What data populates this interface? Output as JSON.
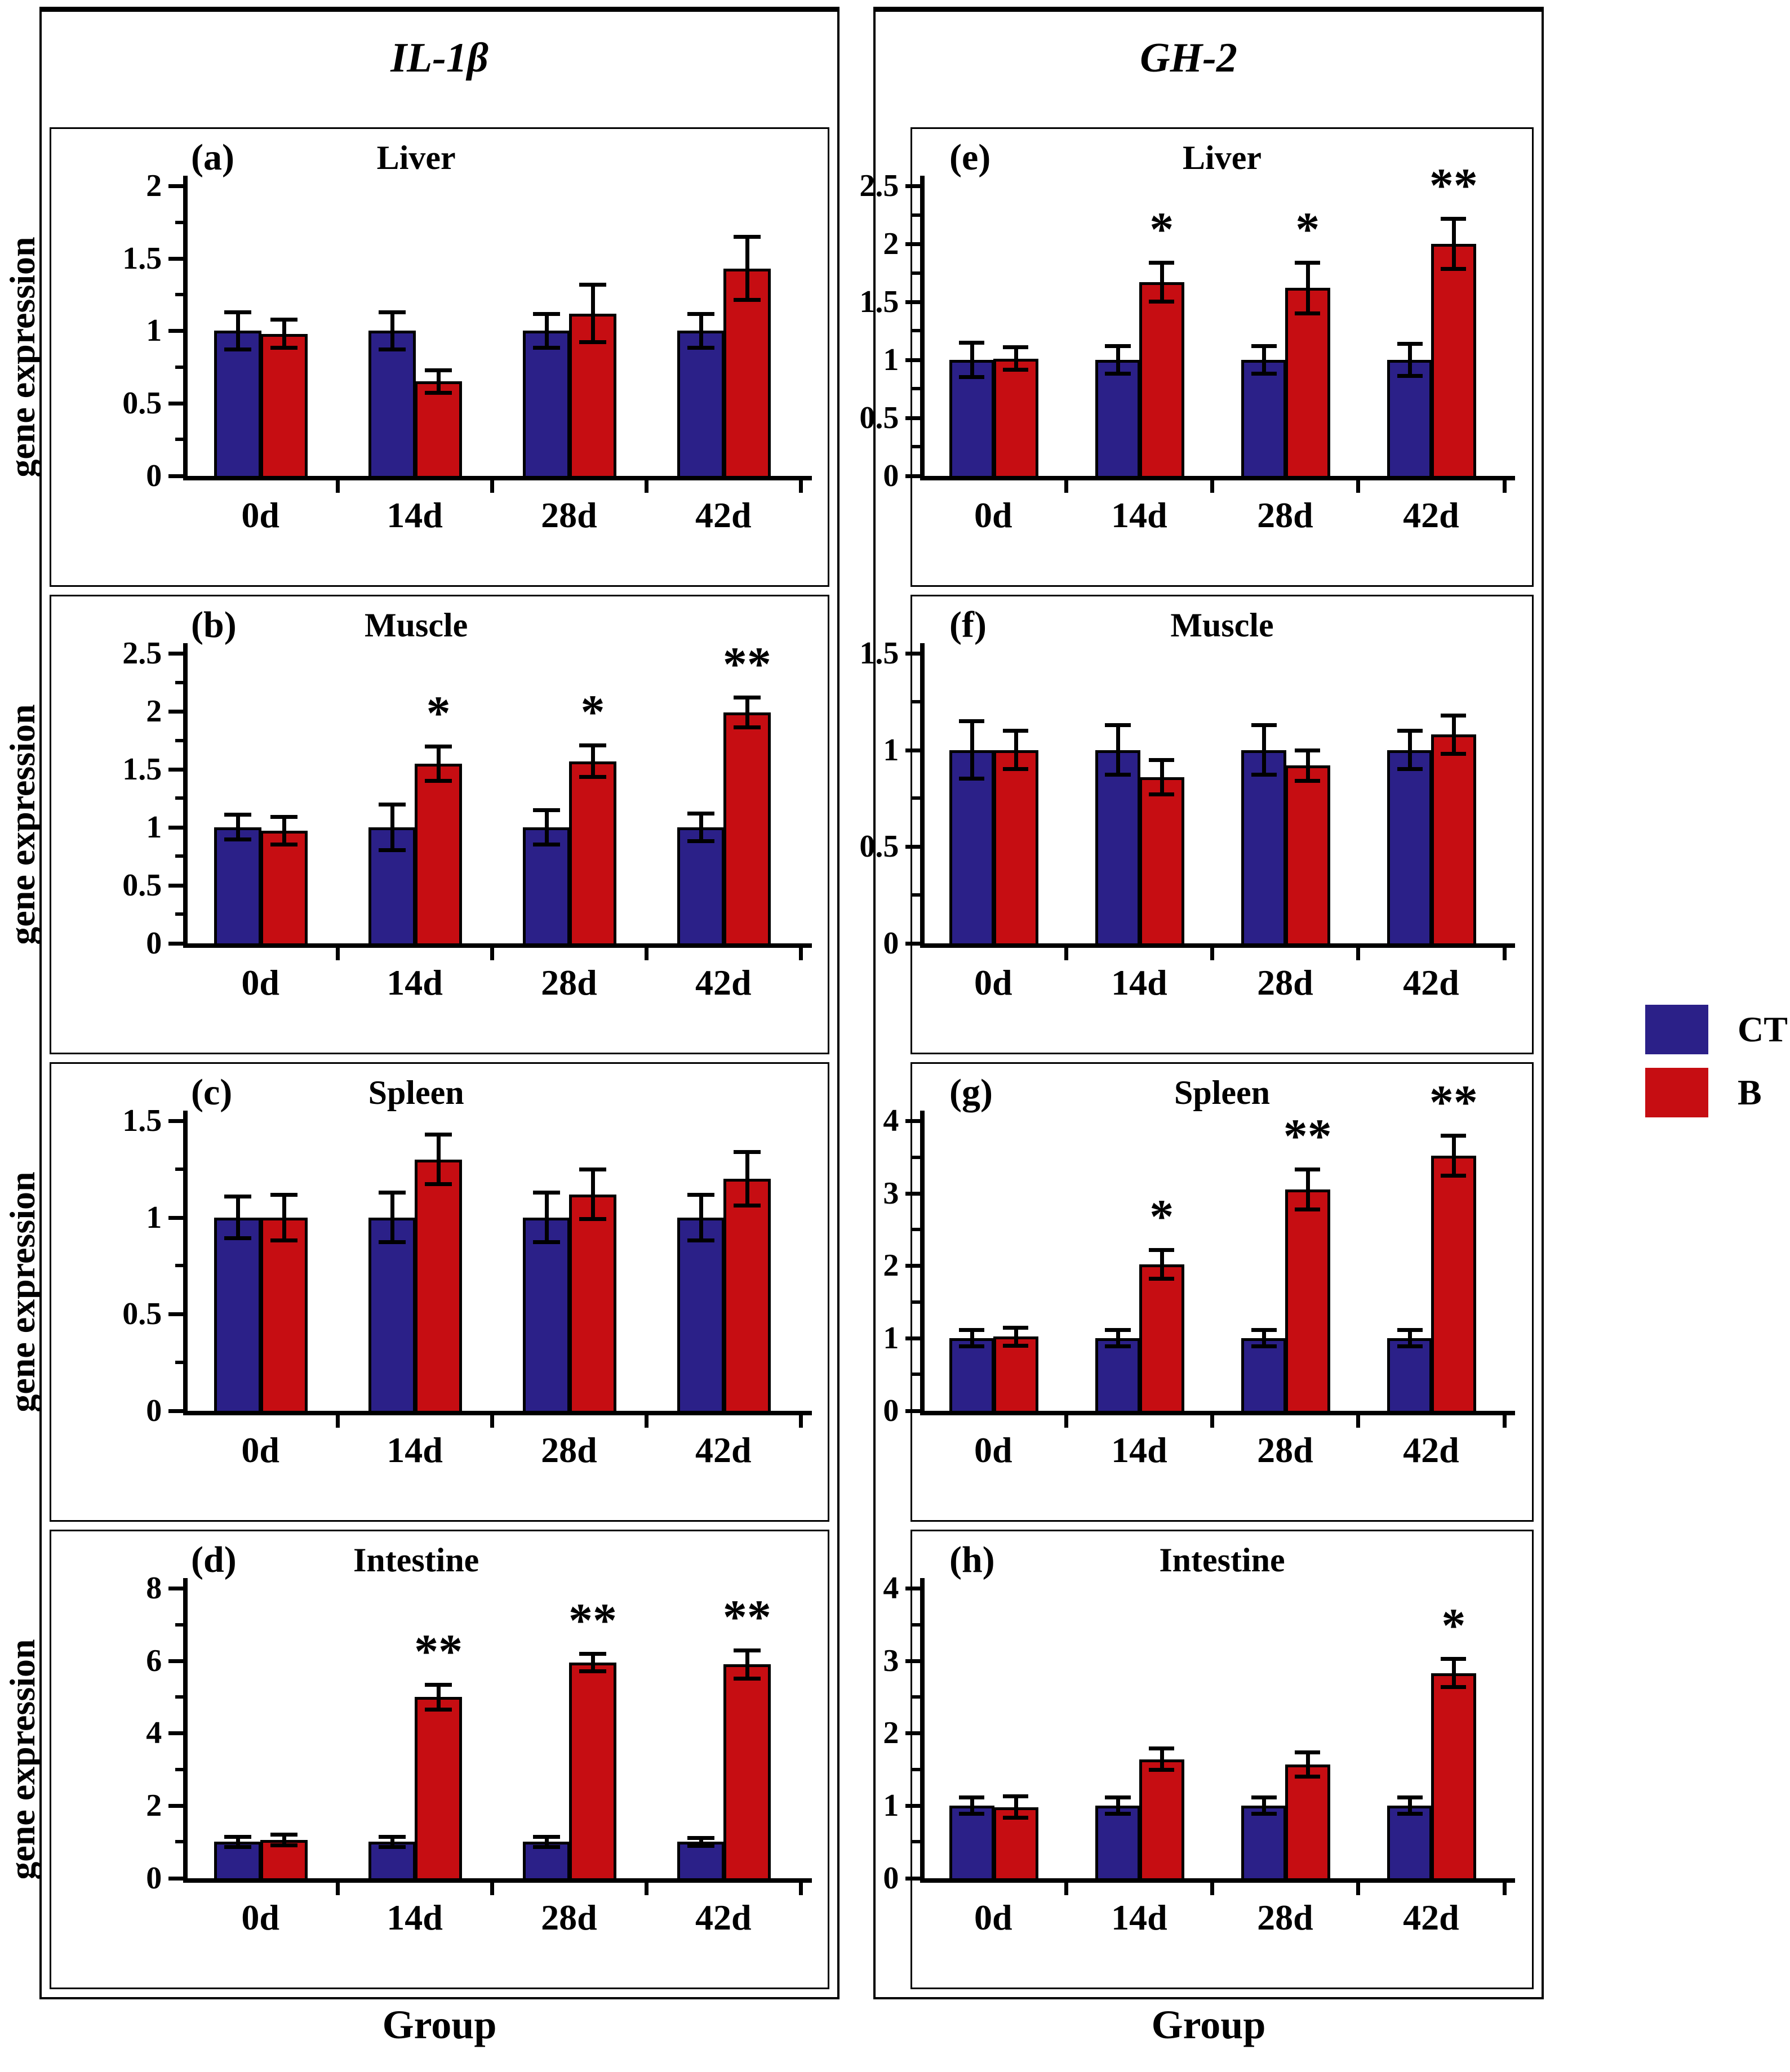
{
  "figure": {
    "columns": [
      {
        "title": "IL-1β"
      },
      {
        "title": "GH-2"
      }
    ],
    "ylabel": "gene expression",
    "xlabel": "Group",
    "legend": {
      "items": [
        {
          "label": "CT",
          "color": "#2B2088"
        },
        {
          "label": "B",
          "color": "#C60D12"
        }
      ]
    }
  },
  "chart_data": [
    {
      "id": "a",
      "title": "Liver",
      "type": "bar",
      "gene": "IL-1β",
      "categories": [
        "0d",
        "14d",
        "28d",
        "42d"
      ],
      "ylim": [
        0,
        2
      ],
      "yticks": [
        0,
        0.5,
        1,
        1.5,
        2
      ],
      "series": [
        {
          "name": "CT",
          "color": "#2B2088",
          "values": [
            1.0,
            1.0,
            1.0,
            1.0
          ],
          "errors": [
            0.13,
            0.13,
            0.12,
            0.12
          ]
        },
        {
          "name": "B",
          "color": "#C60D12",
          "values": [
            0.98,
            0.65,
            1.12,
            1.43
          ],
          "errors": [
            0.1,
            0.08,
            0.2,
            0.22
          ]
        }
      ],
      "significance": [
        "",
        "",
        "",
        ""
      ]
    },
    {
      "id": "b",
      "title": "Muscle",
      "type": "bar",
      "gene": "IL-1β",
      "categories": [
        "0d",
        "14d",
        "28d",
        "42d"
      ],
      "ylim": [
        0,
        2.5
      ],
      "yticks": [
        0,
        0.5,
        1,
        1.5,
        2,
        2.5
      ],
      "series": [
        {
          "name": "CT",
          "color": "#2B2088",
          "values": [
            1.0,
            1.0,
            1.0,
            1.0
          ],
          "errors": [
            0.11,
            0.2,
            0.15,
            0.12
          ]
        },
        {
          "name": "B",
          "color": "#C60D12",
          "values": [
            0.97,
            1.55,
            1.57,
            1.99
          ],
          "errors": [
            0.12,
            0.15,
            0.14,
            0.13
          ]
        }
      ],
      "significance": [
        "",
        "*",
        "*",
        "**"
      ]
    },
    {
      "id": "c",
      "title": "Spleen",
      "type": "bar",
      "gene": "IL-1β",
      "categories": [
        "0d",
        "14d",
        "28d",
        "42d"
      ],
      "ylim": [
        0,
        1.5
      ],
      "yticks": [
        0,
        0.5,
        1,
        1.5
      ],
      "series": [
        {
          "name": "CT",
          "color": "#2B2088",
          "values": [
            1.0,
            1.0,
            1.0,
            1.0
          ],
          "errors": [
            0.11,
            0.13,
            0.13,
            0.12
          ]
        },
        {
          "name": "B",
          "color": "#C60D12",
          "values": [
            1.0,
            1.3,
            1.12,
            1.2
          ],
          "errors": [
            0.12,
            0.13,
            0.13,
            0.14
          ]
        }
      ],
      "significance": [
        "",
        "",
        "",
        ""
      ]
    },
    {
      "id": "d",
      "title": "Intestine",
      "type": "bar",
      "gene": "IL-1β",
      "categories": [
        "0d",
        "14d",
        "28d",
        "42d"
      ],
      "ylim": [
        0,
        8
      ],
      "yticks": [
        0,
        2,
        4,
        6,
        8
      ],
      "series": [
        {
          "name": "CT",
          "color": "#2B2088",
          "values": [
            1.0,
            1.0,
            1.0,
            1.0
          ],
          "errors": [
            0.15,
            0.15,
            0.15,
            0.12
          ]
        },
        {
          "name": "B",
          "color": "#C60D12",
          "values": [
            1.05,
            5.0,
            5.95,
            5.9
          ],
          "errors": [
            0.15,
            0.35,
            0.25,
            0.4
          ]
        }
      ],
      "significance": [
        "",
        "**",
        "**",
        "**"
      ]
    },
    {
      "id": "e",
      "title": "Liver",
      "type": "bar",
      "gene": "GH-2",
      "categories": [
        "0d",
        "14d",
        "28d",
        "42d"
      ],
      "ylim": [
        0,
        2.5
      ],
      "yticks": [
        0,
        0.5,
        1,
        1.5,
        2,
        2.5
      ],
      "series": [
        {
          "name": "CT",
          "color": "#2B2088",
          "values": [
            1.0,
            1.0,
            1.0,
            1.0
          ],
          "errors": [
            0.15,
            0.12,
            0.12,
            0.14
          ]
        },
        {
          "name": "B",
          "color": "#C60D12",
          "values": [
            1.01,
            1.67,
            1.62,
            2.0
          ],
          "errors": [
            0.1,
            0.17,
            0.22,
            0.22
          ]
        }
      ],
      "significance": [
        "",
        "*",
        "*",
        "**"
      ]
    },
    {
      "id": "f",
      "title": "Muscle",
      "type": "bar",
      "gene": "GH-2",
      "categories": [
        "0d",
        "14d",
        "28d",
        "42d"
      ],
      "ylim": [
        0,
        1.5
      ],
      "yticks": [
        0,
        0.5,
        1,
        1.5
      ],
      "series": [
        {
          "name": "CT",
          "color": "#2B2088",
          "values": [
            1.0,
            1.0,
            1.0,
            1.0
          ],
          "errors": [
            0.15,
            0.13,
            0.13,
            0.1
          ]
        },
        {
          "name": "B",
          "color": "#C60D12",
          "values": [
            1.0,
            0.86,
            0.92,
            1.08
          ],
          "errors": [
            0.1,
            0.09,
            0.08,
            0.1
          ]
        }
      ],
      "significance": [
        "",
        "",
        "",
        ""
      ]
    },
    {
      "id": "g",
      "title": "Spleen",
      "type": "bar",
      "gene": "GH-2",
      "categories": [
        "0d",
        "14d",
        "28d",
        "42d"
      ],
      "ylim": [
        0,
        4
      ],
      "yticks": [
        0,
        1,
        2,
        3,
        4
      ],
      "series": [
        {
          "name": "CT",
          "color": "#2B2088",
          "values": [
            1.0,
            1.0,
            1.0,
            1.0
          ],
          "errors": [
            0.12,
            0.12,
            0.12,
            0.12
          ]
        },
        {
          "name": "B",
          "color": "#C60D12",
          "values": [
            1.02,
            2.02,
            3.05,
            3.52
          ],
          "errors": [
            0.13,
            0.2,
            0.28,
            0.28
          ]
        }
      ],
      "significance": [
        "",
        "*",
        "**",
        "**"
      ]
    },
    {
      "id": "h",
      "title": "Intestine",
      "type": "bar",
      "gene": "GH-2",
      "categories": [
        "0d",
        "14d",
        "28d",
        "42d"
      ],
      "ylim": [
        0,
        4
      ],
      "yticks": [
        0,
        1,
        2,
        3,
        4
      ],
      "series": [
        {
          "name": "CT",
          "color": "#2B2088",
          "values": [
            1.0,
            1.0,
            1.0,
            1.0
          ],
          "errors": [
            0.12,
            0.12,
            0.12,
            0.12
          ]
        },
        {
          "name": "B",
          "color": "#C60D12",
          "values": [
            0.98,
            1.64,
            1.57,
            2.83
          ],
          "errors": [
            0.15,
            0.15,
            0.17,
            0.2
          ]
        }
      ],
      "significance": [
        "",
        "",
        "",
        "*"
      ]
    }
  ]
}
